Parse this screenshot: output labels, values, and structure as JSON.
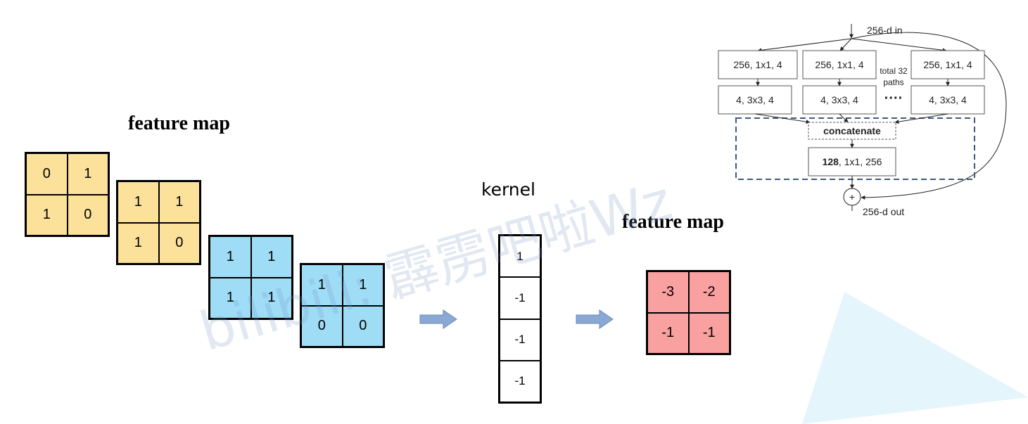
{
  "left_title": "feature map",
  "right_title": "feature map",
  "kernel_label": "kernel",
  "input_maps": [
    {
      "values": [
        "0",
        "1",
        "1",
        "0"
      ],
      "color": "#fbe19a"
    },
    {
      "values": [
        "1",
        "1",
        "1",
        "0"
      ],
      "color": "#fbe19a"
    },
    {
      "values": [
        "1",
        "1",
        "1",
        "1"
      ],
      "color": "#9fdcf6"
    },
    {
      "values": [
        "1",
        "1",
        "0",
        "0"
      ],
      "color": "#9fdcf6"
    }
  ],
  "kernel_values": [
    "1",
    "-1",
    "-1",
    "-1"
  ],
  "output_map": {
    "values": [
      "-3",
      "-2",
      "-1",
      "-1"
    ],
    "color": "#f9a0a0"
  },
  "arrow_color": "#8aa8d4",
  "watermark": "bilibili: 霹雳吧啦Wz",
  "resnext": {
    "input_label": "256-d in",
    "output_label": "256-d out",
    "layer1": [
      "256, 1x1, 4",
      "256, 1x1, 4",
      "256, 1x1, 4"
    ],
    "layer2": [
      "4, 3x3, 4",
      "4, 3x3, 4",
      "4, 3x3, 4"
    ],
    "paths_note_line1": "total 32",
    "paths_note_line2": "paths",
    "ellipsis": "····",
    "concat_label": "concatenate",
    "final_bold": "128",
    "final_rest": ", 1x1, 256",
    "sum_symbol": "+"
  }
}
